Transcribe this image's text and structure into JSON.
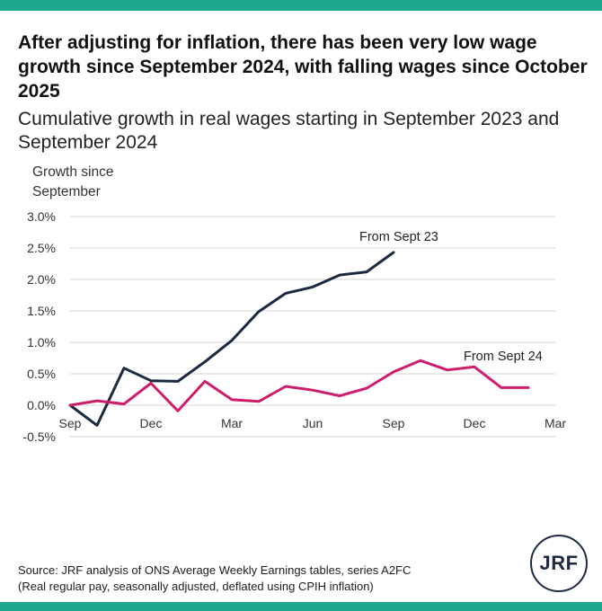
{
  "header": {
    "title": "After adjusting for inflation, there has been very low wage growth since September 2024, with falling wages since October 2025",
    "subtitle": "Cumulative growth in real wages starting in September 2023 and September 2024"
  },
  "footer": {
    "source_line1": "Source: JRF analysis of ONS Average Weekly Earnings tables, series A2FC",
    "source_line2": "(Real regular pay, seasonally adjusted, deflated using CPIH inflation)",
    "logo_text": "JRF"
  },
  "chart_data": {
    "type": "line",
    "title": "After adjusting for inflation, there has been very low wage growth since September 2024, with falling wages since October 2025",
    "subtitle": "Cumulative growth in real wages starting in September 2023 and September 2024",
    "ylabel": "Growth since September",
    "xlabel": "",
    "x_tick_labels": [
      "Sep",
      "Dec",
      "Mar",
      "Jun",
      "Sep",
      "Dec",
      "Mar"
    ],
    "x_tick_months": [
      0,
      3,
      6,
      9,
      12,
      15,
      18
    ],
    "x_range_months": [
      0,
      18
    ],
    "y_tick_labels": [
      "-0.5%",
      "0.0%",
      "0.5%",
      "1.0%",
      "1.5%",
      "2.0%",
      "2.5%",
      "3.0%"
    ],
    "ylim": [
      -0.5,
      3.0
    ],
    "grid": true,
    "series": [
      {
        "name": "From Sept 23",
        "color": "#1b2a40",
        "values": [
          0.0,
          -0.32,
          0.59,
          0.39,
          0.38,
          0.69,
          1.03,
          1.49,
          1.78,
          1.88,
          2.07,
          2.12,
          2.43
        ]
      },
      {
        "name": "From Sept 24",
        "color": "#cc1e6c",
        "values": [
          0.0,
          0.07,
          0.02,
          0.35,
          -0.09,
          0.38,
          0.09,
          0.06,
          0.3,
          0.24,
          0.15,
          0.27,
          0.53,
          0.71,
          0.56,
          0.61,
          0.28,
          0.28
        ]
      }
    ]
  }
}
